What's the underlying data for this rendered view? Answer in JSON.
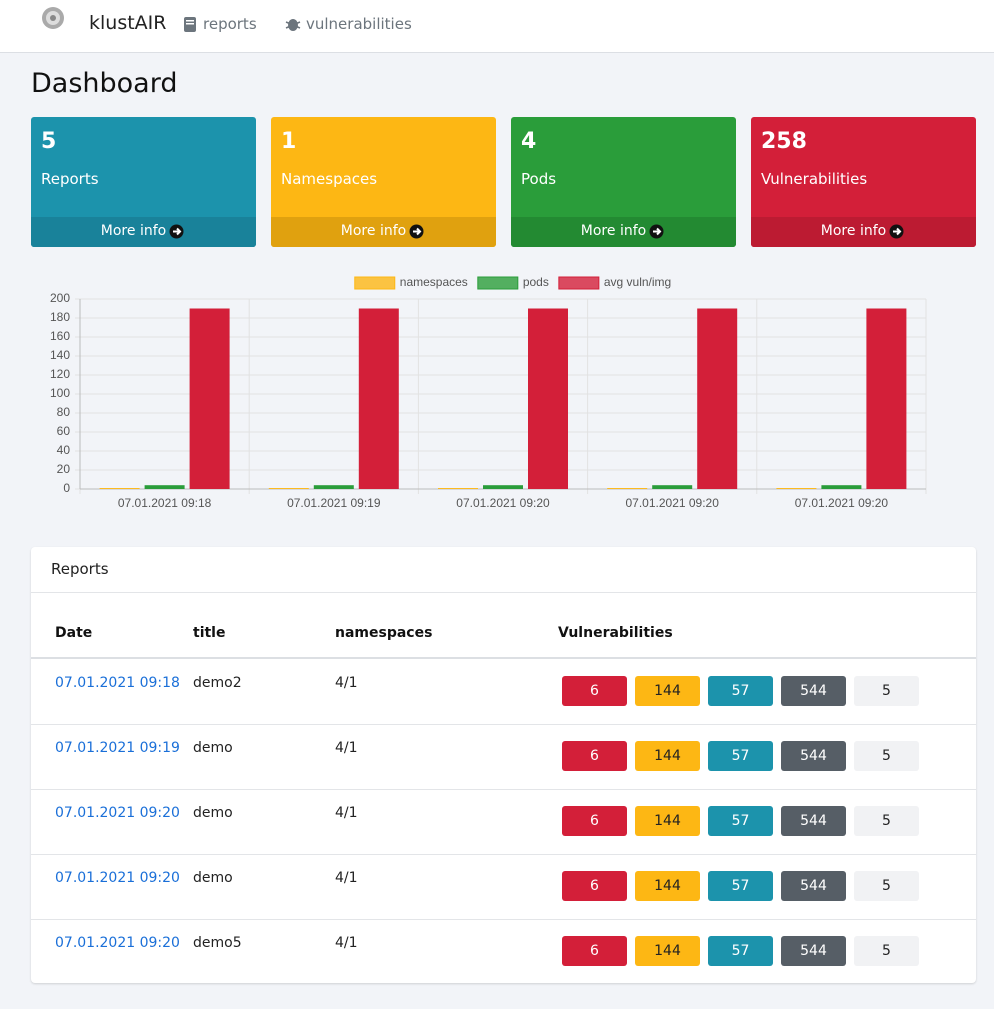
{
  "nav": {
    "brand": "klustAIR",
    "links": [
      "reports",
      "vulnerabilities"
    ]
  },
  "header": {
    "title": "Dashboard"
  },
  "cards": [
    {
      "value": 5,
      "label": "Reports",
      "link": "More info",
      "color": "#1c93ac",
      "footer_color": "#19829a"
    },
    {
      "value": 1,
      "label": "Namespaces",
      "link": "More info",
      "color": "#fdb714",
      "footer_color": "#e0a10f"
    },
    {
      "value": 4,
      "label": "Pods",
      "link": "More info",
      "color": "#2a9d3a",
      "footer_color": "#238a32"
    },
    {
      "value": 258,
      "label": "Vulnerabilities",
      "link": "More info",
      "color": "#d31f39",
      "footer_color": "#bc1b32"
    }
  ],
  "chart_data": {
    "type": "bar",
    "categories": [
      "07.01.2021 09:18",
      "07.01.2021 09:19",
      "07.01.2021 09:20",
      "07.01.2021 09:20",
      "07.01.2021 09:20"
    ],
    "series": [
      {
        "name": "namespaces",
        "color": "#fdb714",
        "values": [
          1,
          1,
          1,
          1,
          1
        ]
      },
      {
        "name": "pods",
        "color": "#2a9d3a",
        "values": [
          4,
          4,
          4,
          4,
          4
        ]
      },
      {
        "name": "avg vuln/img",
        "color": "#d31f39",
        "values": [
          190,
          190,
          190,
          190,
          190
        ]
      }
    ],
    "ylim": [
      0,
      200
    ],
    "yticks": [
      0,
      20,
      40,
      60,
      80,
      100,
      120,
      140,
      160,
      180,
      200
    ],
    "grid": true,
    "legend": "top"
  },
  "reports": {
    "title": "Reports",
    "columns": [
      "Date",
      "title",
      "namespaces",
      "Vulnerabilities"
    ],
    "badge_colors": [
      "#d31f39",
      "#fdb714",
      "#1c93ac",
      "#565e66",
      "#f1f2f4"
    ],
    "rows": [
      {
        "date": "07.01.2021 09:18",
        "title": "demo2",
        "namespaces": "4/1",
        "vulnerabilities": [
          6,
          144,
          57,
          544,
          5
        ]
      },
      {
        "date": "07.01.2021 09:19",
        "title": "demo",
        "namespaces": "4/1",
        "vulnerabilities": [
          6,
          144,
          57,
          544,
          5
        ]
      },
      {
        "date": "07.01.2021 09:20",
        "title": "demo",
        "namespaces": "4/1",
        "vulnerabilities": [
          6,
          144,
          57,
          544,
          5
        ]
      },
      {
        "date": "07.01.2021 09:20",
        "title": "demo",
        "namespaces": "4/1",
        "vulnerabilities": [
          6,
          144,
          57,
          544,
          5
        ]
      },
      {
        "date": "07.01.2021 09:20",
        "title": "demo5",
        "namespaces": "4/1",
        "vulnerabilities": [
          6,
          144,
          57,
          544,
          5
        ]
      }
    ]
  }
}
